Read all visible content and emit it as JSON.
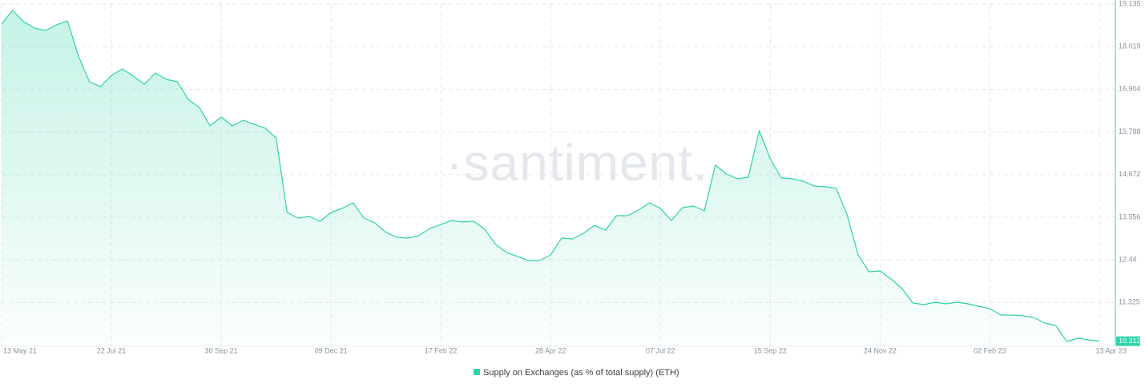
{
  "chart_data": {
    "type": "area-line",
    "watermark": "·santiment.",
    "series": [
      {
        "name": "Supply on Exchanges (as % of total supply) (ETH)",
        "color": "#2fd3a8",
        "x": [
          "2021-05-13",
          "2021-05-20",
          "2021-05-27",
          "2021-06-03",
          "2021-06-10",
          "2021-06-17",
          "2021-06-24",
          "2021-07-01",
          "2021-07-08",
          "2021-07-15",
          "2021-07-22",
          "2021-07-29",
          "2021-08-05",
          "2021-08-12",
          "2021-08-19",
          "2021-08-26",
          "2021-09-02",
          "2021-09-09",
          "2021-09-16",
          "2021-09-23",
          "2021-09-30",
          "2021-10-07",
          "2021-10-14",
          "2021-10-21",
          "2021-10-28",
          "2021-11-04",
          "2021-11-11",
          "2021-11-18",
          "2021-11-25",
          "2021-12-02",
          "2021-12-09",
          "2021-12-16",
          "2021-12-23",
          "2021-12-30",
          "2022-01-06",
          "2022-01-13",
          "2022-01-20",
          "2022-01-27",
          "2022-02-03",
          "2022-02-10",
          "2022-02-17",
          "2022-02-24",
          "2022-03-03",
          "2022-03-10",
          "2022-03-17",
          "2022-03-24",
          "2022-03-31",
          "2022-04-07",
          "2022-04-14",
          "2022-04-21",
          "2022-04-28",
          "2022-05-05",
          "2022-05-12",
          "2022-05-19",
          "2022-05-26",
          "2022-06-02",
          "2022-06-09",
          "2022-06-16",
          "2022-06-23",
          "2022-06-30",
          "2022-07-07",
          "2022-07-14",
          "2022-07-21",
          "2022-07-28",
          "2022-08-04",
          "2022-08-11",
          "2022-08-18",
          "2022-08-25",
          "2022-09-01",
          "2022-09-08",
          "2022-09-15",
          "2022-09-22",
          "2022-09-29",
          "2022-10-06",
          "2022-10-13",
          "2022-10-20",
          "2022-10-27",
          "2022-11-03",
          "2022-11-10",
          "2022-11-17",
          "2022-11-24",
          "2022-12-01",
          "2022-12-08",
          "2022-12-15",
          "2022-12-22",
          "2022-12-29",
          "2023-01-05",
          "2023-01-12",
          "2023-01-19",
          "2023-01-26",
          "2023-02-02",
          "2023-02-09",
          "2023-02-16",
          "2023-02-23",
          "2023-03-02",
          "2023-03-09",
          "2023-03-16",
          "2023-03-23",
          "2023-03-30",
          "2023-04-06",
          "2023-04-13"
        ],
        "values": [
          18.611,
          18.967,
          18.674,
          18.506,
          18.443,
          18.59,
          18.694,
          17.771,
          17.1,
          16.974,
          17.268,
          17.436,
          17.247,
          17.037,
          17.331,
          17.163,
          17.1,
          16.639,
          16.429,
          15.946,
          16.177,
          15.946,
          16.093,
          15.988,
          15.884,
          15.632,
          13.681,
          13.534,
          13.576,
          13.45,
          13.681,
          13.786,
          13.933,
          13.534,
          13.408,
          13.157,
          13.031,
          13.01,
          13.073,
          13.261,
          13.366,
          13.471,
          13.429,
          13.45,
          13.24,
          12.842,
          12.632,
          12.527,
          12.422,
          12.422,
          12.569,
          13.01,
          12.989,
          13.135,
          13.345,
          13.219,
          13.597,
          13.597,
          13.744,
          13.933,
          13.786,
          13.471,
          13.807,
          13.849,
          13.723,
          14.919,
          14.688,
          14.562,
          14.604,
          15.821,
          15.086,
          14.583,
          14.562,
          14.499,
          14.373,
          14.352,
          14.31,
          13.618,
          12.569,
          12.129,
          12.15,
          11.94,
          11.688,
          11.311,
          11.269,
          11.332,
          11.29,
          11.332,
          11.29,
          11.227,
          11.164,
          10.996,
          10.996,
          10.975,
          10.933,
          10.786,
          10.723,
          10.304,
          10.388,
          10.346,
          10.312
        ]
      }
    ],
    "xlim": [
      "2021-05-13",
      "2023-04-23"
    ],
    "xticks": [
      {
        "value": "2021-05-13",
        "label": "13 May 21"
      },
      {
        "value": "2021-07-22",
        "label": "22 Jul 21"
      },
      {
        "value": "2021-09-30",
        "label": "30 Sep 21"
      },
      {
        "value": "2021-12-09",
        "label": "09 Dec 21"
      },
      {
        "value": "2022-02-17",
        "label": "17 Feb 22"
      },
      {
        "value": "2022-04-28",
        "label": "28 Apr 22"
      },
      {
        "value": "2022-07-07",
        "label": "07 Jul 22"
      },
      {
        "value": "2022-09-15",
        "label": "15 Sep 22"
      },
      {
        "value": "2022-11-24",
        "label": "24 Nov 22"
      },
      {
        "value": "2023-02-02",
        "label": "02 Feb 23"
      },
      {
        "value": "2023-04-13",
        "label": "13 Apr 23"
      }
    ],
    "ylim": [
      10.178,
      19.135
    ],
    "yticks": [
      11.325,
      12.44,
      13.556,
      14.672,
      15.788,
      16.904,
      18.019,
      19.135
    ],
    "y_axis_side": "right",
    "grid": true,
    "legend": "bottom"
  }
}
